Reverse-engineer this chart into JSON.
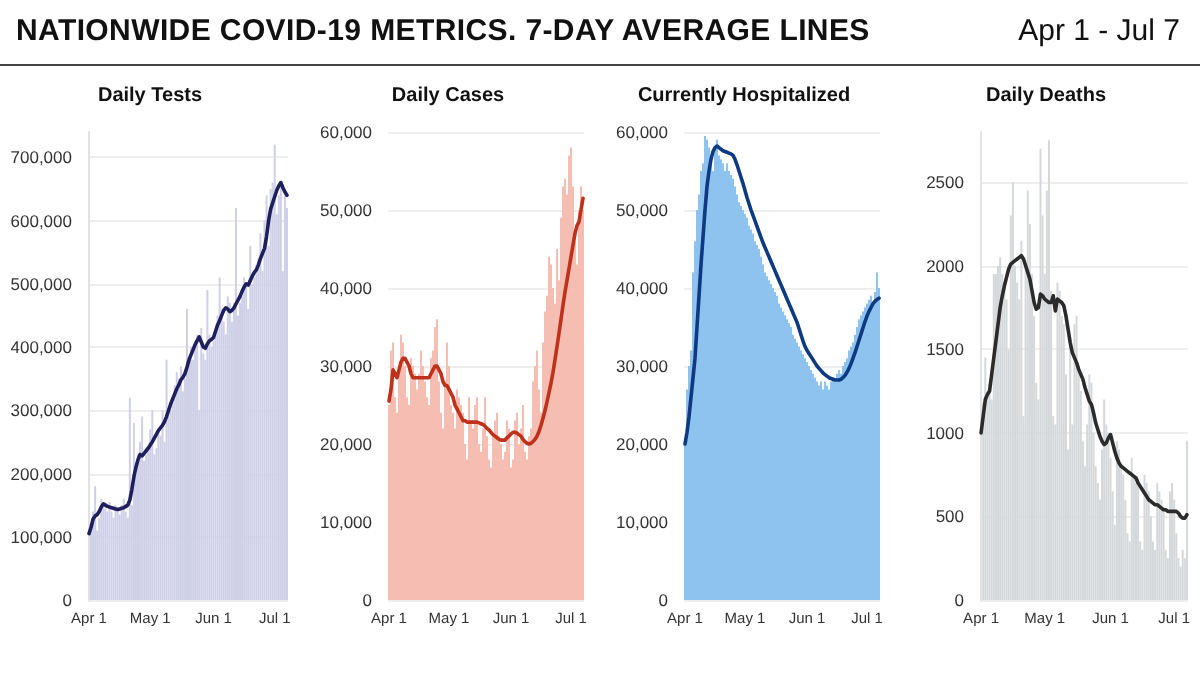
{
  "chart_data": [
    {
      "type": "other",
      "title": "NATIONWIDE COVID-19 METRICS. 7-DAY AVERAGE LINES",
      "subtitle": "Apr 1 - Jul 7"
    },
    {
      "type": "bar",
      "title": "Daily Tests",
      "categories": [
        "Apr 1",
        null,
        null,
        null,
        null,
        null,
        null,
        null,
        null,
        null,
        null,
        null,
        null,
        null,
        null,
        null,
        null,
        null,
        null,
        null,
        null,
        null,
        null,
        null,
        null,
        null,
        null,
        null,
        null,
        null,
        "May 1",
        null,
        null,
        null,
        null,
        null,
        null,
        null,
        null,
        null,
        null,
        null,
        null,
        null,
        null,
        null,
        null,
        null,
        null,
        null,
        null,
        null,
        null,
        null,
        null,
        null,
        null,
        null,
        null,
        null,
        null,
        "Jun 1",
        null,
        null,
        null,
        null,
        null,
        null,
        null,
        null,
        null,
        null,
        null,
        null,
        null,
        null,
        null,
        null,
        null,
        null,
        null,
        null,
        null,
        null,
        null,
        null,
        null,
        null,
        null,
        null,
        null,
        "Jul 1",
        null,
        null,
        null,
        null,
        null,
        null
      ],
      "series": [
        {
          "type": "bar",
          "color": "#cfd0e8",
          "values": [
            null,
            120000,
            140000,
            180000,
            110000,
            130000,
            160000,
            150000,
            145000,
            140000,
            155000,
            140000,
            130000,
            150000,
            145000,
            135000,
            150000,
            160000,
            140000,
            130000,
            320000,
            150000,
            280000,
            200000,
            230000,
            250000,
            290000,
            220000,
            230000,
            240000,
            270000,
            300000,
            230000,
            240000,
            270000,
            260000,
            300000,
            250000,
            380000,
            290000,
            300000,
            320000,
            340000,
            360000,
            350000,
            370000,
            330000,
            350000,
            460000,
            380000,
            400000,
            380000,
            410000,
            420000,
            300000,
            430000,
            390000,
            380000,
            490000,
            420000,
            400000,
            410000,
            420000,
            450000,
            510000,
            460000,
            440000,
            420000,
            480000,
            470000,
            440000,
            470000,
            620000,
            450000,
            470000,
            480000,
            510000,
            500000,
            460000,
            560000,
            500000,
            510000,
            530000,
            540000,
            580000,
            520000,
            600000,
            640000,
            560000,
            650000,
            660000,
            720000,
            610000,
            640000,
            660000,
            520000,
            640000,
            620000
          ]
        },
        {
          "type": "line",
          "color": "#1f1f5e",
          "values": [
            105000,
            115000,
            128000,
            133000,
            135000,
            140000,
            147000,
            152000,
            150000,
            148000,
            147000,
            146000,
            145000,
            144000,
            143000,
            144000,
            145000,
            146000,
            148000,
            150000,
            158000,
            175000,
            195000,
            210000,
            222000,
            230000,
            228000,
            232000,
            236000,
            240000,
            245000,
            250000,
            256000,
            262000,
            268000,
            272000,
            276000,
            282000,
            290000,
            300000,
            310000,
            318000,
            326000,
            334000,
            340000,
            348000,
            352000,
            358000,
            368000,
            380000,
            388000,
            396000,
            404000,
            410000,
            416000,
            408000,
            400000,
            398000,
            405000,
            410000,
            412000,
            415000,
            425000,
            435000,
            442000,
            450000,
            458000,
            462000,
            460000,
            456000,
            458000,
            462000,
            468000,
            474000,
            480000,
            488000,
            495000,
            500000,
            498000,
            505000,
            512000,
            518000,
            522000,
            530000,
            540000,
            548000,
            556000,
            575000,
            600000,
            618000,
            628000,
            638000,
            648000,
            655000,
            660000,
            652000,
            645000,
            640000
          ]
        }
      ],
      "ylim": [
        0,
        740000
      ],
      "yticks": [
        {
          "value": 0,
          "label": "0"
        },
        {
          "value": 100000,
          "label": "100,000"
        },
        {
          "value": 200000,
          "label": "200,000"
        },
        {
          "value": 300000,
          "label": "300,000"
        },
        {
          "value": 400000,
          "label": "400,000"
        },
        {
          "value": 500000,
          "label": "500,000"
        },
        {
          "value": 600000,
          "label": "600,000"
        },
        {
          "value": 700000,
          "label": "700,000"
        }
      ],
      "grid": "y",
      "marker": "none",
      "line_style": "solid"
    },
    {
      "type": "bar",
      "title": "Daily Cases",
      "categories": [
        "Apr 1",
        null,
        null,
        null,
        null,
        null,
        null,
        null,
        null,
        null,
        null,
        null,
        null,
        null,
        null,
        null,
        null,
        null,
        null,
        null,
        null,
        null,
        null,
        null,
        null,
        null,
        null,
        null,
        null,
        null,
        "May 1",
        null,
        null,
        null,
        null,
        null,
        null,
        null,
        null,
        null,
        null,
        null,
        null,
        null,
        null,
        null,
        null,
        null,
        null,
        null,
        null,
        null,
        null,
        null,
        null,
        null,
        null,
        null,
        null,
        null,
        null,
        "Jun 1",
        null,
        null,
        null,
        null,
        null,
        null,
        null,
        null,
        null,
        null,
        null,
        null,
        null,
        null,
        null,
        null,
        null,
        null,
        null,
        null,
        null,
        null,
        null,
        null,
        null,
        null,
        null,
        null,
        null,
        "Jul 1",
        null,
        null,
        null,
        null,
        null,
        null
      ],
      "series": [
        {
          "type": "bar",
          "color": "#f6bdb3",
          "values": [
            25000,
            32000,
            33000,
            26000,
            24000,
            29000,
            34000,
            33000,
            30000,
            26000,
            25000,
            31000,
            30000,
            29000,
            27000,
            29000,
            32000,
            30000,
            28000,
            26000,
            25000,
            31000,
            32000,
            35000,
            36000,
            28000,
            24000,
            22000,
            28000,
            33000,
            30000,
            25000,
            24000,
            22000,
            27000,
            26000,
            25000,
            24000,
            20000,
            18000,
            26000,
            23000,
            22000,
            25000,
            26000,
            20000,
            19000,
            22000,
            26000,
            21000,
            18000,
            17000,
            21000,
            23000,
            24000,
            21000,
            20000,
            18000,
            19000,
            23000,
            22000,
            17000,
            18000,
            23000,
            24000,
            20000,
            22000,
            25000,
            19000,
            18000,
            21000,
            22000,
            28000,
            30000,
            32000,
            27000,
            24000,
            33000,
            37000,
            39000,
            44000,
            43000,
            40000,
            38000,
            45000,
            41000,
            49000,
            53000,
            54000,
            52000,
            57000,
            58000,
            53000,
            46000,
            43000,
            50000,
            53000,
            50000
          ]
        },
        {
          "type": "line",
          "color": "#c0311b",
          "values": [
            25500,
            27000,
            29500,
            29000,
            28500,
            29500,
            30500,
            31000,
            31000,
            30500,
            30000,
            29000,
            28500,
            28500,
            28500,
            28500,
            28500,
            28500,
            28500,
            28500,
            28500,
            29000,
            29500,
            30000,
            30000,
            29500,
            29000,
            28000,
            27500,
            27500,
            27000,
            26500,
            26000,
            25000,
            24500,
            24000,
            23500,
            23000,
            23000,
            22800,
            22800,
            22800,
            22800,
            22800,
            22800,
            22700,
            22600,
            22500,
            22300,
            22000,
            21800,
            21500,
            21200,
            21000,
            20800,
            20600,
            20500,
            20500,
            20500,
            20800,
            21000,
            21300,
            21500,
            21500,
            21400,
            21200,
            21000,
            20600,
            20300,
            20100,
            20000,
            20100,
            20300,
            20600,
            21000,
            21600,
            22400,
            23300,
            24300,
            25400,
            26600,
            27800,
            29200,
            30800,
            32500,
            34200,
            36000,
            37800,
            39500,
            41000,
            42500,
            44000,
            45500,
            47000,
            48000,
            48500,
            50000,
            51500
          ]
        }
      ],
      "ylim": [
        0,
        60000
      ],
      "yticks": [
        {
          "value": 0,
          "label": "0"
        },
        {
          "value": 10000,
          "label": "10,000"
        },
        {
          "value": 20000,
          "label": "20,000"
        },
        {
          "value": 30000,
          "label": "30,000"
        },
        {
          "value": 40000,
          "label": "40,000"
        },
        {
          "value": 50000,
          "label": "50,000"
        },
        {
          "value": 60000,
          "label": "60,000"
        }
      ],
      "grid": "y",
      "marker": "none",
      "line_style": "solid"
    },
    {
      "type": "bar",
      "title": "Currently Hospitalized",
      "categories": [
        "Apr 1",
        null,
        null,
        null,
        null,
        null,
        null,
        null,
        null,
        null,
        null,
        null,
        null,
        null,
        null,
        null,
        null,
        null,
        null,
        null,
        null,
        null,
        null,
        null,
        null,
        null,
        null,
        null,
        null,
        null,
        "May 1",
        null,
        null,
        null,
        null,
        null,
        null,
        null,
        null,
        null,
        null,
        null,
        null,
        null,
        null,
        null,
        null,
        null,
        null,
        null,
        null,
        null,
        null,
        null,
        null,
        null,
        null,
        null,
        null,
        null,
        null,
        "Jun 1",
        null,
        null,
        null,
        null,
        null,
        null,
        null,
        null,
        null,
        null,
        null,
        null,
        null,
        null,
        null,
        null,
        null,
        null,
        null,
        null,
        null,
        null,
        null,
        null,
        null,
        null,
        null,
        null,
        null,
        "Jul 1",
        null,
        null,
        null,
        null,
        null,
        null
      ],
      "series": [
        {
          "type": "bar",
          "color": "#8ec3ef",
          "values": [
            20000,
            27000,
            30000,
            32000,
            42000,
            46000,
            50000,
            52000,
            55000,
            56000,
            59500,
            59000,
            58000,
            56000,
            55000,
            58000,
            59000,
            57000,
            56500,
            56000,
            55000,
            56000,
            55000,
            54500,
            54000,
            53000,
            52000,
            51000,
            50500,
            50000,
            49500,
            49000,
            48000,
            47500,
            47000,
            46000,
            45500,
            45000,
            44000,
            43000,
            42000,
            41500,
            41000,
            40500,
            40000,
            39500,
            39000,
            38000,
            37500,
            37000,
            36500,
            36000,
            35500,
            35000,
            34000,
            33500,
            33000,
            32500,
            32000,
            31500,
            31000,
            30500,
            30000,
            29500,
            29000,
            28500,
            28000,
            27500,
            28000,
            27000,
            28000,
            27500,
            27000,
            28000,
            28500,
            28000,
            29000,
            29500,
            29000,
            30000,
            30500,
            31000,
            32000,
            32500,
            33000,
            34000,
            35000,
            36000,
            36500,
            37000,
            37500,
            38000,
            38500,
            39000,
            38000,
            39500,
            42000,
            40000
          ]
        },
        {
          "type": "line",
          "color": "#0d3a82",
          "values": [
            20000,
            21500,
            23500,
            26000,
            28500,
            31000,
            35000,
            39000,
            43000,
            46500,
            50000,
            53000,
            55000,
            56500,
            57500,
            58000,
            58200,
            58000,
            57800,
            57600,
            57500,
            57400,
            57300,
            57200,
            57000,
            56500,
            55800,
            55000,
            54200,
            53400,
            52500,
            51600,
            50800,
            50000,
            49300,
            48600,
            47900,
            47200,
            46500,
            45800,
            45200,
            44600,
            44000,
            43400,
            42800,
            42200,
            41600,
            41000,
            40400,
            39800,
            39200,
            38600,
            38000,
            37400,
            36800,
            36200,
            35600,
            34800,
            34000,
            33200,
            32500,
            32000,
            31600,
            31200,
            30800,
            30400,
            30000,
            29700,
            29400,
            29100,
            28900,
            28700,
            28500,
            28400,
            28300,
            28200,
            28200,
            28200,
            28300,
            28500,
            28800,
            29200,
            29700,
            30300,
            31000,
            31700,
            32500,
            33300,
            34100,
            34900,
            35700,
            36400,
            37000,
            37500,
            38000,
            38300,
            38500,
            38700
          ]
        }
      ],
      "ylim": [
        0,
        60000
      ],
      "yticks": [
        {
          "value": 0,
          "label": "0"
        },
        {
          "value": 10000,
          "label": "10,000"
        },
        {
          "value": 20000,
          "label": "20,000"
        },
        {
          "value": 30000,
          "label": "30,000"
        },
        {
          "value": 40000,
          "label": "40,000"
        },
        {
          "value": 50000,
          "label": "50,000"
        },
        {
          "value": 60000,
          "label": "60,000"
        }
      ],
      "grid": "y",
      "marker": "none",
      "line_style": "solid"
    },
    {
      "type": "bar",
      "title": "Daily Deaths",
      "categories": [
        "Apr 1",
        null,
        null,
        null,
        null,
        null,
        null,
        null,
        null,
        null,
        null,
        null,
        null,
        null,
        null,
        null,
        null,
        null,
        null,
        null,
        null,
        null,
        null,
        null,
        null,
        null,
        null,
        null,
        null,
        null,
        "May 1",
        null,
        null,
        null,
        null,
        null,
        null,
        null,
        null,
        null,
        null,
        null,
        null,
        null,
        null,
        null,
        null,
        null,
        null,
        null,
        null,
        null,
        null,
        null,
        null,
        null,
        null,
        null,
        null,
        null,
        null,
        "Jun 1",
        null,
        null,
        null,
        null,
        null,
        null,
        null,
        null,
        null,
        null,
        null,
        null,
        null,
        null,
        null,
        null,
        null,
        null,
        null,
        null,
        null,
        null,
        null,
        null,
        null,
        null,
        null,
        null,
        null,
        "Jul 1",
        null,
        null,
        null,
        null,
        null,
        null
      ],
      "series": [
        {
          "type": "bar",
          "color": "#d5d8da",
          "values": [
            null,
            1180,
            1450,
            1250,
            1300,
            1200,
            1950,
            1950,
            2000,
            2050,
            1950,
            1900,
            1800,
            1500,
            2300,
            2500,
            2000,
            1900,
            1800,
            2150,
            1100,
            2000,
            2450,
            2250,
            1950,
            1700,
            1300,
            1200,
            2700,
            2300,
            1950,
            2450,
            2750,
            1850,
            1100,
            1050,
            1900,
            1850,
            1700,
            1650,
            1350,
            900,
            1550,
            1050,
            1650,
            1700,
            1400,
            1250,
            950,
            800,
            1050,
            1350,
            1300,
            1000,
            800,
            700,
            600,
            900,
            1200,
            1050,
            1000,
            850,
            650,
            450,
            950,
            900,
            800,
            750,
            600,
            400,
            350,
            850,
            750,
            700,
            700,
            350,
            300,
            750,
            700,
            650,
            500,
            350,
            300,
            700,
            650,
            600,
            550,
            300,
            250,
            650,
            700,
            600,
            400,
            250,
            200,
            300,
            250,
            950
          ]
        },
        {
          "type": "line",
          "color": "#2b2b2b",
          "values": [
            1000,
            1100,
            1200,
            1230,
            1250,
            1350,
            1450,
            1550,
            1650,
            1750,
            1820,
            1880,
            1930,
            1980,
            2010,
            2020,
            2030,
            2040,
            2050,
            2060,
            2040,
            2000,
            1960,
            1920,
            1850,
            1780,
            1740,
            1750,
            1830,
            1820,
            1800,
            1790,
            1780,
            1780,
            1820,
            1730,
            1800,
            1790,
            1780,
            1760,
            1700,
            1620,
            1540,
            1480,
            1450,
            1420,
            1380,
            1350,
            1320,
            1270,
            1230,
            1190,
            1170,
            1120,
            1060,
            1020,
            980,
            950,
            930,
            940,
            970,
            990,
            940,
            890,
            850,
            820,
            800,
            790,
            780,
            770,
            760,
            750,
            740,
            730,
            700,
            680,
            660,
            640,
            620,
            600,
            590,
            580,
            570,
            570,
            560,
            550,
            540,
            540,
            530,
            530,
            530,
            530,
            530,
            520,
            500,
            490,
            490,
            510
          ]
        }
      ],
      "ylim": [
        0,
        2800
      ],
      "yticks": [
        0,
        500,
        1000,
        1500,
        2000,
        2500
      ],
      "grid": "y",
      "marker": "none",
      "line_style": "solid"
    }
  ]
}
